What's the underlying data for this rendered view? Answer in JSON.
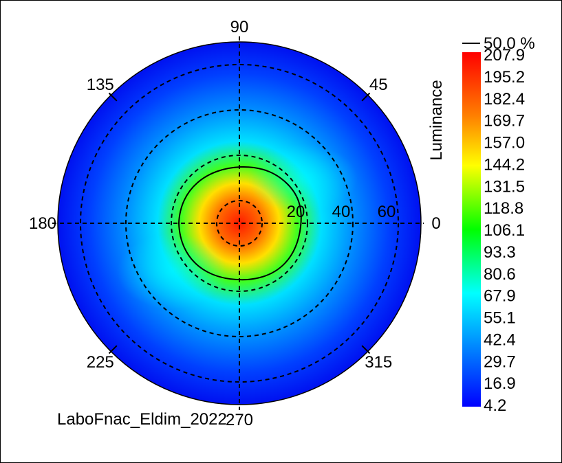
{
  "chart_data": {
    "type": "heatmap",
    "subtype": "polar-conoscope",
    "quantity_label": "Luminance",
    "footer_text": "LaboFnac_Eldim_2022",
    "angle_labels": [
      "0",
      "45",
      "90",
      "135",
      "180",
      "225",
      "270",
      "315"
    ],
    "radial_labels": [
      "20",
      "40",
      "60"
    ],
    "radial_max": 80,
    "contour_legend": "50.0 %",
    "color_scale": {
      "min": 4.2,
      "max": 207.9,
      "ticks": [
        "207.9",
        "195.2",
        "182.4",
        "169.7",
        "157.0",
        "144.2",
        "131.5",
        "118.8",
        "106.1",
        "93.3",
        "80.6",
        "67.9",
        "55.1",
        "42.4",
        "29.7",
        "16.9",
        "4.2"
      ]
    },
    "peak": {
      "value": 207.9,
      "theta_deg": 0,
      "incl_deg": 0
    },
    "colors": {
      "low": "#0000ff",
      "mid": "#00ff00",
      "high": "#ff0000",
      "contour": "#000000",
      "grid": "#000000"
    }
  }
}
